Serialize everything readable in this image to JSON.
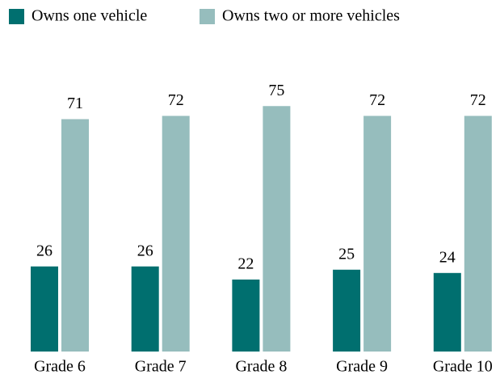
{
  "chart_data": {
    "type": "bar",
    "categories": [
      "Grade 6",
      "Grade 7",
      "Grade 8",
      "Grade 9",
      "Grade 10"
    ],
    "series": [
      {
        "name": "Owns one vehicle",
        "color": "#006f6f",
        "values": [
          26,
          26,
          22,
          25,
          24
        ]
      },
      {
        "name": "Owns two or more vehicles",
        "color": "#96bdbd",
        "values": [
          71,
          72,
          75,
          72,
          72
        ]
      }
    ]
  }
}
